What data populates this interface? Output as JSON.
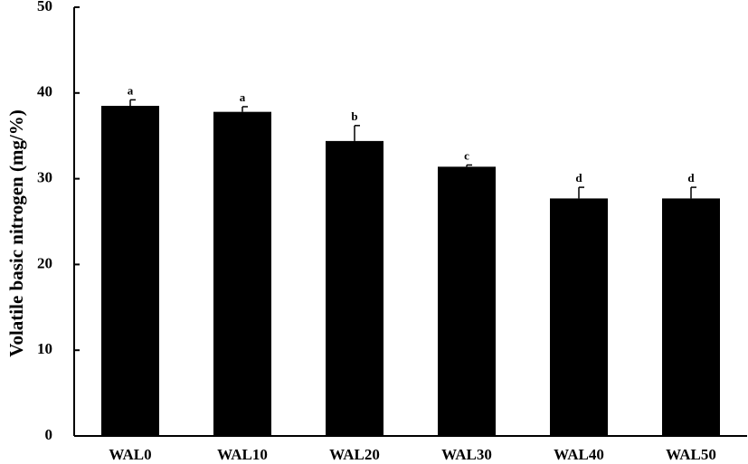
{
  "chart_data": {
    "type": "bar",
    "title": "",
    "xlabel": "",
    "ylabel": "Volatile basic nitrogen (mg/%)",
    "ylim": [
      0,
      50
    ],
    "yticks": [
      0,
      10,
      20,
      30,
      40,
      50
    ],
    "grid": false,
    "legend": "none",
    "categories": [
      "WAL0",
      "WAL10",
      "WAL20",
      "WAL30",
      "WAL40",
      "WAL50"
    ],
    "values": [
      38.5,
      37.8,
      34.4,
      31.4,
      27.7,
      27.7
    ],
    "errors": [
      0.7,
      0.6,
      1.8,
      0.2,
      1.3,
      1.3
    ],
    "significance_labels": [
      "a",
      "a",
      "b",
      "c",
      "d",
      "d"
    ],
    "bar_color": "#000000"
  }
}
